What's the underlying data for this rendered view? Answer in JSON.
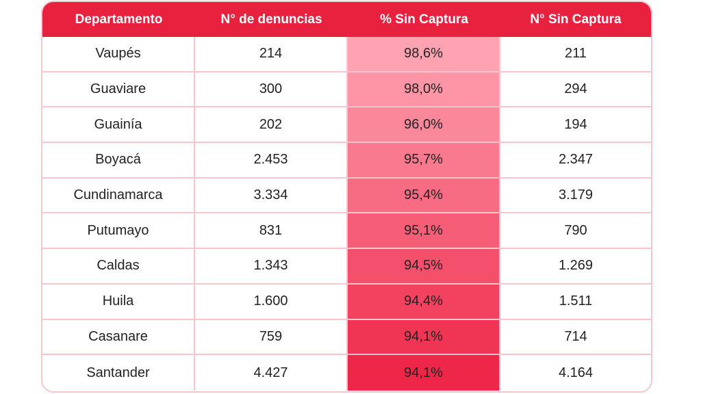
{
  "chart_data": {
    "type": "table",
    "columns": [
      "Departamento",
      "N° de denuncias",
      "% Sin Captura",
      "N° Sin Captura"
    ],
    "rows": [
      {
        "departamento": "Vaupés",
        "denuncias": "214",
        "pct_sin_captura": "98,6%",
        "sin_captura": "211",
        "pct_value": 98.6
      },
      {
        "departamento": "Guaviare",
        "denuncias": "300",
        "pct_sin_captura": "98,0%",
        "sin_captura": "294",
        "pct_value": 98.0
      },
      {
        "departamento": "Guainía",
        "denuncias": "202",
        "pct_sin_captura": "96,0%",
        "sin_captura": "194",
        "pct_value": 96.0
      },
      {
        "departamento": "Boyacá",
        "denuncias": "2.453",
        "pct_sin_captura": "95,7%",
        "sin_captura": "2.347",
        "pct_value": 95.7
      },
      {
        "departamento": "Cundinamarca",
        "denuncias": "3.334",
        "pct_sin_captura": "95,4%",
        "sin_captura": "3.179",
        "pct_value": 95.4
      },
      {
        "departamento": "Putumayo",
        "denuncias": "831",
        "pct_sin_captura": "95,1%",
        "sin_captura": "790",
        "pct_value": 95.1
      },
      {
        "departamento": "Caldas",
        "denuncias": "1.343",
        "pct_sin_captura": "94,5%",
        "sin_captura": "1.269",
        "pct_value": 94.5
      },
      {
        "departamento": "Huila",
        "denuncias": "1.600",
        "pct_sin_captura": "94,4%",
        "sin_captura": "1.511",
        "pct_value": 94.4
      },
      {
        "departamento": "Casanare",
        "denuncias": "759",
        "pct_sin_captura": "94,1%",
        "sin_captura": "714",
        "pct_value": 94.1
      },
      {
        "departamento": "Santander",
        "denuncias": "4.427",
        "pct_sin_captura": "94,1%",
        "sin_captura": "4.164",
        "pct_value": 94.1
      }
    ]
  },
  "colors": {
    "header": "#e8213f",
    "border": "#f7c6cd",
    "heat_light": "#ffa3b3",
    "heat_dark": "#ee2648"
  }
}
